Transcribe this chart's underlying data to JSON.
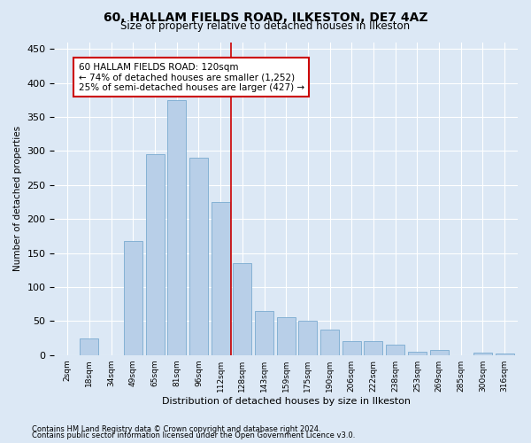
{
  "title": "60, HALLAM FIELDS ROAD, ILKESTON, DE7 4AZ",
  "subtitle": "Size of property relative to detached houses in Ilkeston",
  "xlabel": "Distribution of detached houses by size in Ilkeston",
  "ylabel": "Number of detached properties",
  "categories": [
    "2sqm",
    "18sqm",
    "34sqm",
    "49sqm",
    "65sqm",
    "81sqm",
    "96sqm",
    "112sqm",
    "128sqm",
    "143sqm",
    "159sqm",
    "175sqm",
    "190sqm",
    "206sqm",
    "222sqm",
    "238sqm",
    "253sqm",
    "269sqm",
    "285sqm",
    "300sqm",
    "316sqm"
  ],
  "values": [
    0,
    25,
    0,
    168,
    295,
    375,
    290,
    225,
    135,
    65,
    55,
    50,
    38,
    20,
    20,
    15,
    5,
    8,
    0,
    3,
    2
  ],
  "bar_color": "#b8cfe8",
  "bar_edge_color": "#7aaad0",
  "vline_color": "#cc0000",
  "vline_pos": 7.5,
  "annotation_text": "60 HALLAM FIELDS ROAD: 120sqm\n← 74% of detached houses are smaller (1,252)\n25% of semi-detached houses are larger (427) →",
  "ylim": [
    0,
    460
  ],
  "yticks": [
    0,
    50,
    100,
    150,
    200,
    250,
    300,
    350,
    400,
    450
  ],
  "footer1": "Contains HM Land Registry data © Crown copyright and database right 2024.",
  "footer2": "Contains public sector information licensed under the Open Government Licence v3.0.",
  "bg_color": "#dce8f5"
}
